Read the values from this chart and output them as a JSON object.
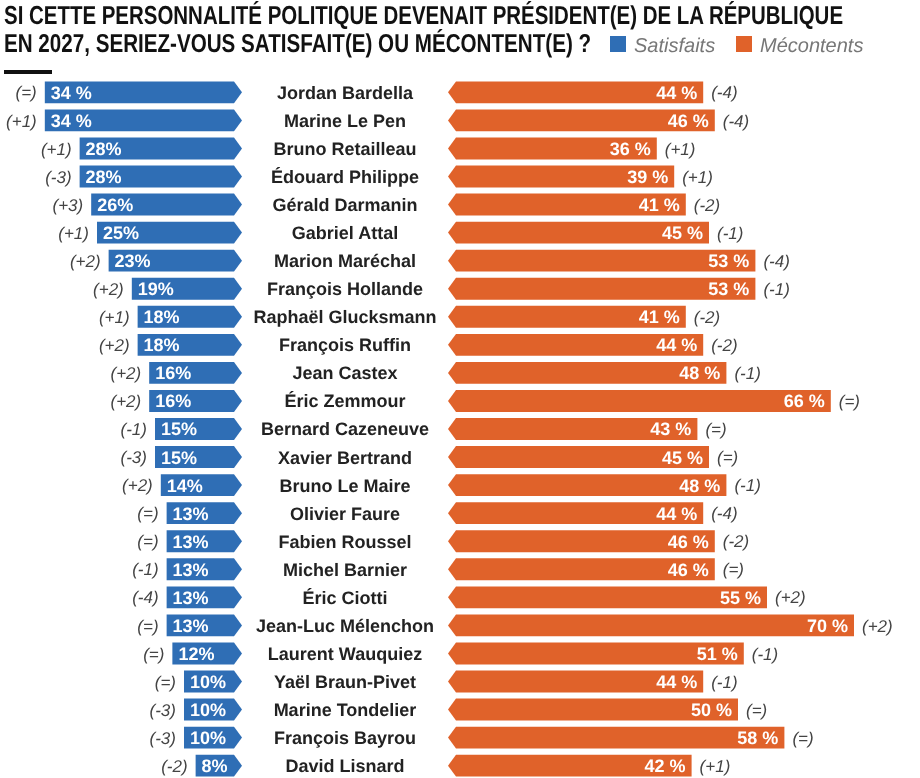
{
  "chart_data": [
    {
      "type": "bar",
      "orientation": "horizontal",
      "title": "SI CETTE PERSONNALITÉ POLITIQUE DEVENAIT PRÉSIDENT(E) DE LA RÉPUBLIQUE EN 2027, SERIEZ-VOUS SATISFAIT(E) OU MÉCONTENT(E) ?",
      "legend": "top right",
      "categories": [
        "Jordan Bardella",
        "Marine Le Pen",
        "Bruno Retailleau",
        "Édouard Philippe",
        "Gérald Darmanin",
        "Gabriel Attal",
        "Marion Maréchal",
        "François Hollande",
        "Raphaël Glucksmann",
        "François Ruffin",
        "Jean Castex",
        "Éric Zemmour",
        "Bernard Cazeneuve",
        "Xavier Bertrand",
        "Bruno Le Maire",
        "Olivier Faure",
        "Fabien Roussel",
        "Michel Barnier",
        "Éric Ciotti",
        "Jean-Luc Mélenchon",
        "Laurent Wauquiez",
        "Yaël Braun-Pivet",
        "Marine Tondelier",
        "François Bayrou",
        "David Lisnard"
      ],
      "series": [
        {
          "name": "Satisfaits",
          "color": "#2f6eb5",
          "values": [
            34,
            34,
            28,
            28,
            26,
            25,
            23,
            19,
            18,
            18,
            16,
            16,
            15,
            15,
            14,
            13,
            13,
            13,
            13,
            13,
            12,
            10,
            10,
            10,
            8
          ],
          "value_labels": [
            "34 %",
            "34 %",
            "28%",
            "28%",
            "26%",
            "25%",
            "23%",
            "19%",
            "18%",
            "18%",
            "16%",
            "16%",
            "15%",
            "15%",
            "14%",
            "13%",
            "13%",
            "13%",
            "13%",
            "13%",
            "12%",
            "10%",
            "10%",
            "10%",
            "8%"
          ]
        }
      ],
      "annotations": [
        {
          "text": "(=)",
          "x": 34,
          "y": "Jordan Bardella"
        },
        {
          "text": "(+1)",
          "x": 34,
          "y": "Marine Le Pen"
        },
        {
          "text": "(+1)",
          "x": 28,
          "y": "Bruno Retailleau"
        },
        {
          "text": "(-3)",
          "x": 28,
          "y": "Édouard Philippe"
        },
        {
          "text": "(+3)",
          "x": 26,
          "y": "Gérald Darmanin"
        },
        {
          "text": "(+1)",
          "x": 25,
          "y": "Gabriel Attal"
        },
        {
          "text": "(+2)",
          "x": 23,
          "y": "Marion Maréchal"
        },
        {
          "text": "(+2)",
          "x": 19,
          "y": "François Hollande"
        },
        {
          "text": "(+1)",
          "x": 18,
          "y": "Raphaël Glucksmann"
        },
        {
          "text": "(+2)",
          "x": 18,
          "y": "François Ruffin"
        },
        {
          "text": "(+2)",
          "x": 16,
          "y": "Jean Castex"
        },
        {
          "text": "(+2)",
          "x": 16,
          "y": "Éric Zemmour"
        },
        {
          "text": "(-1)",
          "x": 15,
          "y": "Bernard Cazeneuve"
        },
        {
          "text": "(-3)",
          "x": 15,
          "y": "Xavier Bertrand"
        },
        {
          "text": "(+2)",
          "x": 14,
          "y": "Bruno Le Maire"
        },
        {
          "text": "(=)",
          "x": 13,
          "y": "Olivier Faure"
        },
        {
          "text": "(=)",
          "x": 13,
          "y": "Fabien Roussel"
        },
        {
          "text": "(-1)",
          "x": 13,
          "y": "Michel Barnier"
        },
        {
          "text": "(-4)",
          "x": 13,
          "y": "Éric Ciotti"
        },
        {
          "text": "(=)",
          "x": 13,
          "y": "Jean-Luc Mélenchon"
        },
        {
          "text": "(=)",
          "x": 12,
          "y": "Laurent Wauquiez"
        },
        {
          "text": "(=)",
          "x": 10,
          "y": "Yaël Braun-Pivet"
        },
        {
          "text": "(-3)",
          "x": 10,
          "y": "Marine Tondelier"
        },
        {
          "text": "(-3)",
          "x": 10,
          "y": "François Bayrou"
        },
        {
          "text": "(-2)",
          "x": 8,
          "y": "David Lisnard"
        }
      ]
    },
    {
      "type": "bar",
      "orientation": "horizontal",
      "legend": "top right",
      "tick_labels": false,
      "categories": [
        "Jordan Bardella",
        "Marine Le Pen",
        "Bruno Retailleau",
        "Édouard Philippe",
        "Gérald Darmanin",
        "Gabriel Attal",
        "Marion Maréchal",
        "François Hollande",
        "Raphaël Glucksmann",
        "François Ruffin",
        "Jean Castex",
        "Éric Zemmour",
        "Bernard Cazeneuve",
        "Xavier Bertrand",
        "Bruno Le Maire",
        "Olivier Faure",
        "Fabien Roussel",
        "Michel Barnier",
        "Éric Ciotti",
        "Jean-Luc Mélenchon",
        "Laurent Wauquiez",
        "Yaël Braun-Pivet",
        "Marine Tondelier",
        "François Bayrou",
        "David Lisnard"
      ],
      "series": [
        {
          "name": "Mécontents",
          "color": "#e0622a",
          "values": [
            44,
            46,
            36,
            39,
            41,
            45,
            53,
            53,
            41,
            44,
            48,
            66,
            43,
            45,
            48,
            44,
            46,
            46,
            55,
            70,
            51,
            44,
            50,
            58,
            42
          ],
          "value_labels": [
            "44 %",
            "46 %",
            "36 %",
            "39 %",
            "41 %",
            "45 %",
            "53 %",
            "53 %",
            "41 %",
            "44 %",
            "48 %",
            "66 %",
            "43 %",
            "45 %",
            "48 %",
            "44 %",
            "46 %",
            "46 %",
            "55 %",
            "70 %",
            "51 %",
            "44 %",
            "50 %",
            "58 %",
            "42 %"
          ]
        }
      ],
      "annotations": [
        {
          "text": "(-4)",
          "x": 44,
          "y": "Jordan Bardella"
        },
        {
          "text": "(-4)",
          "x": 46,
          "y": "Marine Le Pen"
        },
        {
          "text": "(+1)",
          "x": 36,
          "y": "Bruno Retailleau"
        },
        {
          "text": "(+1)",
          "x": 39,
          "y": "Édouard Philippe"
        },
        {
          "text": "(-2)",
          "x": 41,
          "y": "Gérald Darmanin"
        },
        {
          "text": "(-1)",
          "x": 45,
          "y": "Gabriel Attal"
        },
        {
          "text": "(-4)",
          "x": 53,
          "y": "Marion Maréchal"
        },
        {
          "text": "(-1)",
          "x": 53,
          "y": "François Hollande"
        },
        {
          "text": "(-2)",
          "x": 41,
          "y": "Raphaël Glucksmann"
        },
        {
          "text": "(-2)",
          "x": 44,
          "y": "François Ruffin"
        },
        {
          "text": "(-1)",
          "x": 48,
          "y": "Jean Castex"
        },
        {
          "text": "(=)",
          "x": 66,
          "y": "Éric Zemmour"
        },
        {
          "text": "(=)",
          "x": 43,
          "y": "Bernard Cazeneuve"
        },
        {
          "text": "(=)",
          "x": 45,
          "y": "Xavier Bertrand"
        },
        {
          "text": "(-1)",
          "x": 48,
          "y": "Bruno Le Maire"
        },
        {
          "text": "(-4)",
          "x": 44,
          "y": "Olivier Faure"
        },
        {
          "text": "(-2)",
          "x": 46,
          "y": "Fabien Roussel"
        },
        {
          "text": "(=)",
          "x": 46,
          "y": "Michel Barnier"
        },
        {
          "text": "(+2)",
          "x": 55,
          "y": "Éric Ciotti"
        },
        {
          "text": "(+2)",
          "x": 70,
          "y": "Jean-Luc Mélenchon"
        },
        {
          "text": "(-1)",
          "x": 51,
          "y": "Laurent Wauquiez"
        },
        {
          "text": "(-1)",
          "x": 44,
          "y": "Yaël Braun-Pivet"
        },
        {
          "text": "(=)",
          "x": 50,
          "y": "Marine Tondelier"
        },
        {
          "text": "(=)",
          "x": 58,
          "y": "François Bayrou"
        },
        {
          "text": "(+1)",
          "x": 42,
          "y": "David Lisnard"
        }
      ]
    }
  ]
}
